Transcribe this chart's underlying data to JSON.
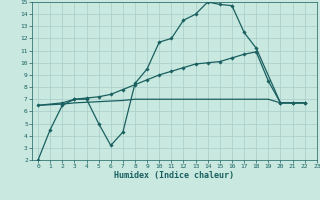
{
  "xlabel": "Humidex (Indice chaleur)",
  "background_color": "#c8e8e0",
  "grid_color": "#a8ccc8",
  "line_color": "#1a6060",
  "xlim": [
    -0.5,
    23
  ],
  "ylim": [
    2,
    15
  ],
  "xticks": [
    0,
    1,
    2,
    3,
    4,
    5,
    6,
    7,
    8,
    9,
    10,
    11,
    12,
    13,
    14,
    15,
    16,
    17,
    18,
    19,
    20,
    21,
    22,
    23
  ],
  "yticks": [
    2,
    3,
    4,
    5,
    6,
    7,
    8,
    9,
    10,
    11,
    12,
    13,
    14,
    15
  ],
  "curve1_x": [
    0,
    1,
    2,
    3,
    4,
    5,
    6,
    7,
    8,
    9,
    10,
    11,
    12,
    13,
    14,
    15,
    16,
    17,
    18,
    20,
    21,
    22
  ],
  "curve1_y": [
    2.0,
    4.5,
    6.5,
    7.0,
    7.0,
    5.0,
    3.2,
    4.3,
    8.3,
    9.5,
    11.7,
    12.0,
    13.5,
    14.0,
    15.0,
    14.8,
    14.7,
    12.5,
    11.2,
    6.7,
    6.7,
    6.7
  ],
  "curve2_x": [
    0,
    2,
    3,
    4,
    5,
    6,
    7,
    8,
    9,
    10,
    11,
    12,
    13,
    14,
    15,
    16,
    17,
    18,
    19,
    20,
    21,
    22
  ],
  "curve2_y": [
    6.5,
    6.7,
    7.0,
    7.1,
    7.2,
    7.4,
    7.8,
    8.2,
    8.6,
    9.0,
    9.3,
    9.6,
    9.9,
    10.0,
    10.1,
    10.4,
    10.7,
    10.9,
    8.5,
    6.7,
    6.7,
    6.7
  ],
  "curve3_x": [
    0,
    2,
    3,
    4,
    5,
    6,
    7,
    8,
    9,
    10,
    11,
    12,
    13,
    14,
    15,
    16,
    17,
    18,
    19,
    20,
    21,
    22
  ],
  "curve3_y": [
    6.5,
    6.6,
    6.7,
    6.75,
    6.8,
    6.85,
    6.9,
    7.0,
    7.0,
    7.0,
    7.0,
    7.0,
    7.0,
    7.0,
    7.0,
    7.0,
    7.0,
    7.0,
    7.0,
    6.7,
    6.7,
    6.7
  ]
}
